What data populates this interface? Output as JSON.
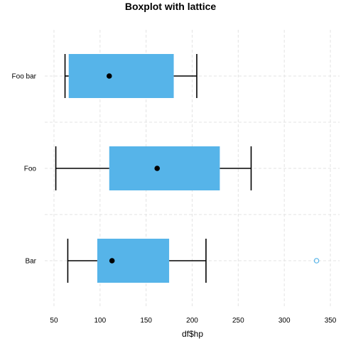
{
  "chart_data": {
    "type": "boxplot",
    "orientation": "horizontal",
    "title": "Boxplot with lattice",
    "xlabel": "df$hp",
    "ylabel": "",
    "xlim": [
      40,
      360
    ],
    "x_ticks": [
      50,
      100,
      150,
      200,
      250,
      300,
      350
    ],
    "grid": true,
    "categories": [
      "Bar",
      "Foo",
      "Foo bar"
    ],
    "boxes": [
      {
        "category": "Bar",
        "whisker_low": 65,
        "q1": 97,
        "median": 113,
        "q3": 175,
        "whisker_high": 215,
        "outliers": [
          335
        ]
      },
      {
        "category": "Foo",
        "whisker_low": 52,
        "q1": 110,
        "median": 162,
        "q3": 230,
        "whisker_high": 264,
        "outliers": []
      },
      {
        "category": "Foo bar",
        "whisker_low": 62,
        "q1": 66,
        "median": 110,
        "q3": 180,
        "whisker_high": 205,
        "outliers": []
      }
    ],
    "colors": {
      "box": "#56b4e9",
      "median": "#000000",
      "whisker": "#000000",
      "outlier": "#56b4e9",
      "grid": "#e3e3e3"
    }
  }
}
